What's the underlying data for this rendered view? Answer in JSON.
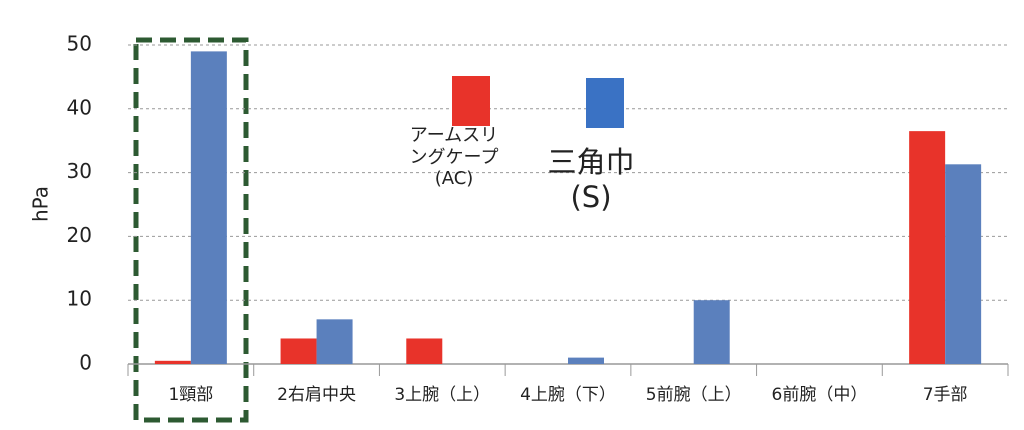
{
  "chart_data": {
    "type": "bar",
    "y_label": "hPa",
    "categories": [
      "1頸部",
      "2右肩中央",
      "3上腕（上）",
      "4上腕（下）",
      "5前腕（上）",
      "6前腕（中）",
      "7手部"
    ],
    "series": [
      {
        "name": "アームスリングケープ(AC)",
        "color": "#e8332a",
        "values": [
          0.5,
          4,
          4,
          0,
          0,
          0,
          36.5
        ]
      },
      {
        "name": "三角巾(S)",
        "color": "#5b80bd",
        "values": [
          49,
          7,
          0,
          1,
          10,
          0,
          31.3
        ]
      }
    ],
    "ylim": [
      0,
      50
    ],
    "yticks": [
      0,
      10,
      20,
      30,
      40,
      50
    ],
    "grid": true
  }
}
